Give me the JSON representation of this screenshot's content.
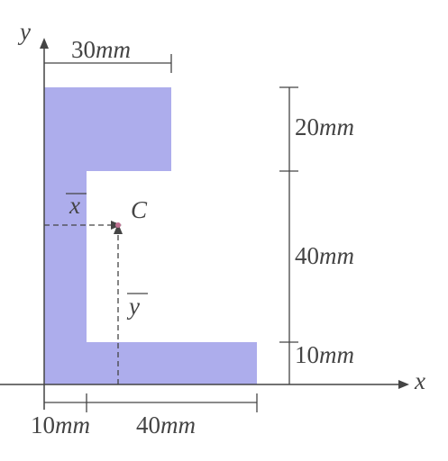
{
  "axes": {
    "x_label": "x",
    "y_label": "y"
  },
  "centroid": {
    "label": "C",
    "x_bar": "x",
    "y_bar": "y"
  },
  "dimensions": {
    "top_width": {
      "value": "30",
      "unit": "mm"
    },
    "bottom_left": {
      "value": "10",
      "unit": "mm"
    },
    "bottom_right": {
      "value": "40",
      "unit": "mm"
    },
    "right_top": {
      "value": "20",
      "unit": "mm"
    },
    "right_mid": {
      "value": "40",
      "unit": "mm"
    },
    "right_bottom": {
      "value": "10",
      "unit": "mm"
    }
  },
  "colors": {
    "shape_fill": "#adadec",
    "line": "#444444",
    "centroid_point": "#c07090"
  }
}
